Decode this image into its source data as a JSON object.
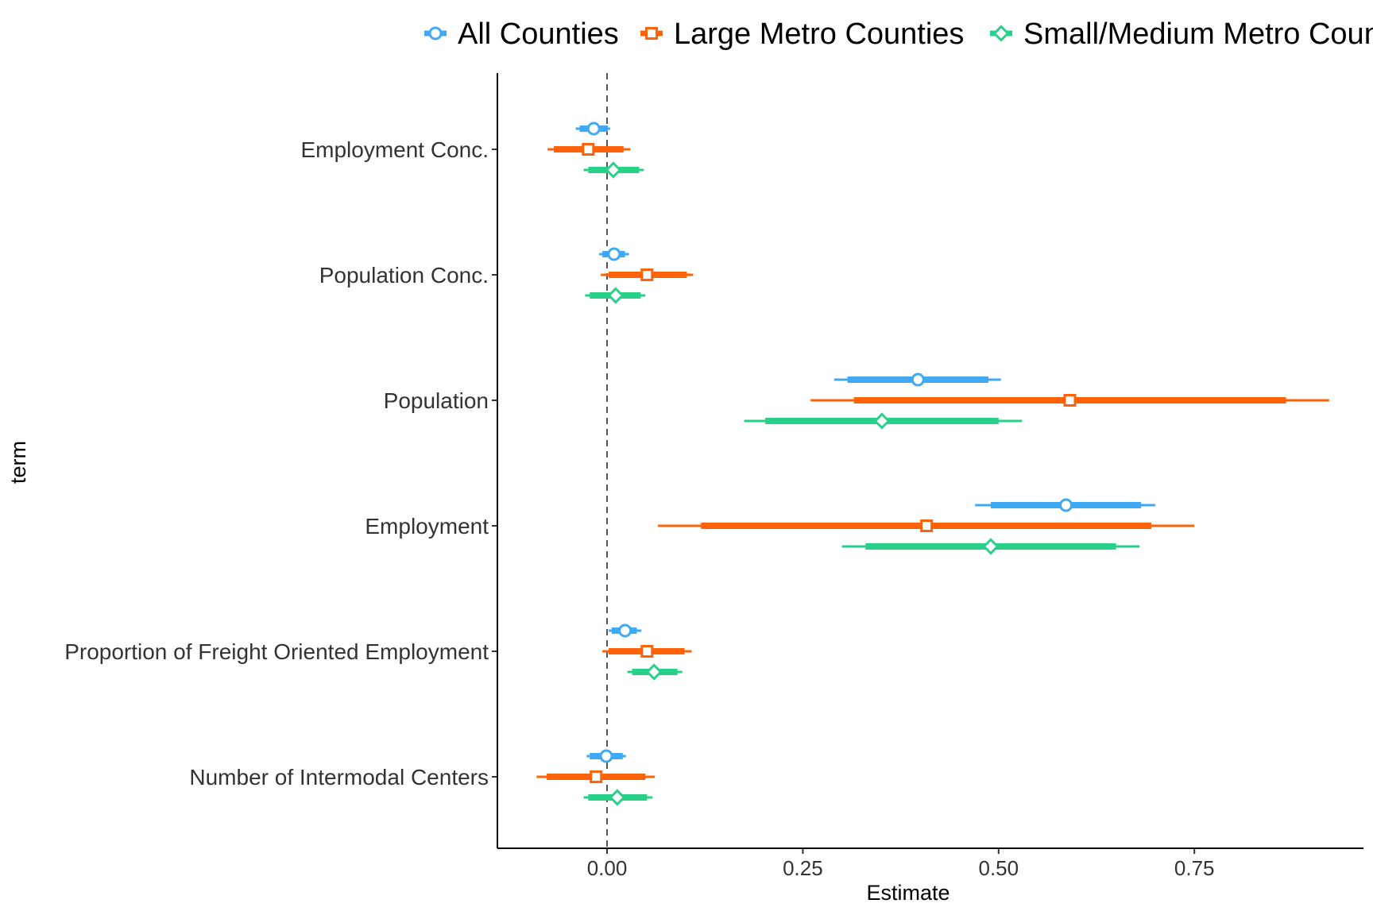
{
  "chart_data": {
    "type": "coefficient-plot",
    "title": "",
    "xlabel": "Estimate",
    "ylabel": "term",
    "xlim": [
      -0.14,
      0.93
    ],
    "x_ticks": [
      {
        "value": 0.0,
        "label": "0.00"
      },
      {
        "value": 0.25,
        "label": "0.25"
      },
      {
        "value": 0.5,
        "label": "0.50"
      },
      {
        "value": 0.75,
        "label": "0.75"
      }
    ],
    "reference_line": 0,
    "grid": false,
    "legend_position": "top",
    "terms": [
      "Employment Conc.",
      "Population Conc.",
      "Population",
      "Employment",
      "Proportion of Freight Oriented Employment",
      "Number of Intermodal Centers"
    ],
    "series": [
      {
        "name": "All Counties",
        "marker": "circle",
        "color": "#3FA9F5",
        "estimates": [
          -0.017,
          0.009,
          0.397,
          0.586,
          0.023,
          -0.001
        ],
        "inner_ci": [
          [
            -0.035,
            0.001
          ],
          [
            -0.006,
            0.023
          ],
          [
            0.307,
            0.487
          ],
          [
            0.49,
            0.682
          ],
          [
            0.006,
            0.038
          ],
          [
            -0.022,
            0.02
          ]
        ],
        "outer_ci": [
          [
            -0.04,
            0.004
          ],
          [
            -0.01,
            0.028
          ],
          [
            0.29,
            0.503
          ],
          [
            0.47,
            0.7
          ],
          [
            0.002,
            0.044
          ],
          [
            -0.026,
            0.024
          ]
        ]
      },
      {
        "name": "Large Metro Counties",
        "marker": "square",
        "color": "#FF6309",
        "estimates": [
          -0.024,
          0.051,
          0.591,
          0.408,
          0.051,
          -0.014
        ],
        "inner_ci": [
          [
            -0.068,
            0.021
          ],
          [
            0.002,
            0.102
          ],
          [
            0.315,
            0.867
          ],
          [
            0.12,
            0.695
          ],
          [
            0.002,
            0.099
          ],
          [
            -0.077,
            0.049
          ]
        ],
        "outer_ci": [
          [
            -0.076,
            0.03
          ],
          [
            -0.008,
            0.11
          ],
          [
            0.26,
            0.922
          ],
          [
            0.065,
            0.75
          ],
          [
            -0.006,
            0.108
          ],
          [
            -0.09,
            0.061
          ]
        ]
      },
      {
        "name": "Small/Medium Metro Counties",
        "marker": "diamond",
        "color": "#27D188",
        "estimates": [
          0.008,
          0.011,
          0.351,
          0.49,
          0.06,
          0.013
        ],
        "inner_ci": [
          [
            -0.024,
            0.041
          ],
          [
            -0.022,
            0.043
          ],
          [
            0.202,
            0.5
          ],
          [
            0.33,
            0.65
          ],
          [
            0.032,
            0.09
          ],
          [
            -0.024,
            0.051
          ]
        ],
        "outer_ci": [
          [
            -0.03,
            0.047
          ],
          [
            -0.028,
            0.049
          ],
          [
            0.175,
            0.53
          ],
          [
            0.3,
            0.68
          ],
          [
            0.026,
            0.096
          ],
          [
            -0.03,
            0.058
          ]
        ]
      }
    ]
  }
}
